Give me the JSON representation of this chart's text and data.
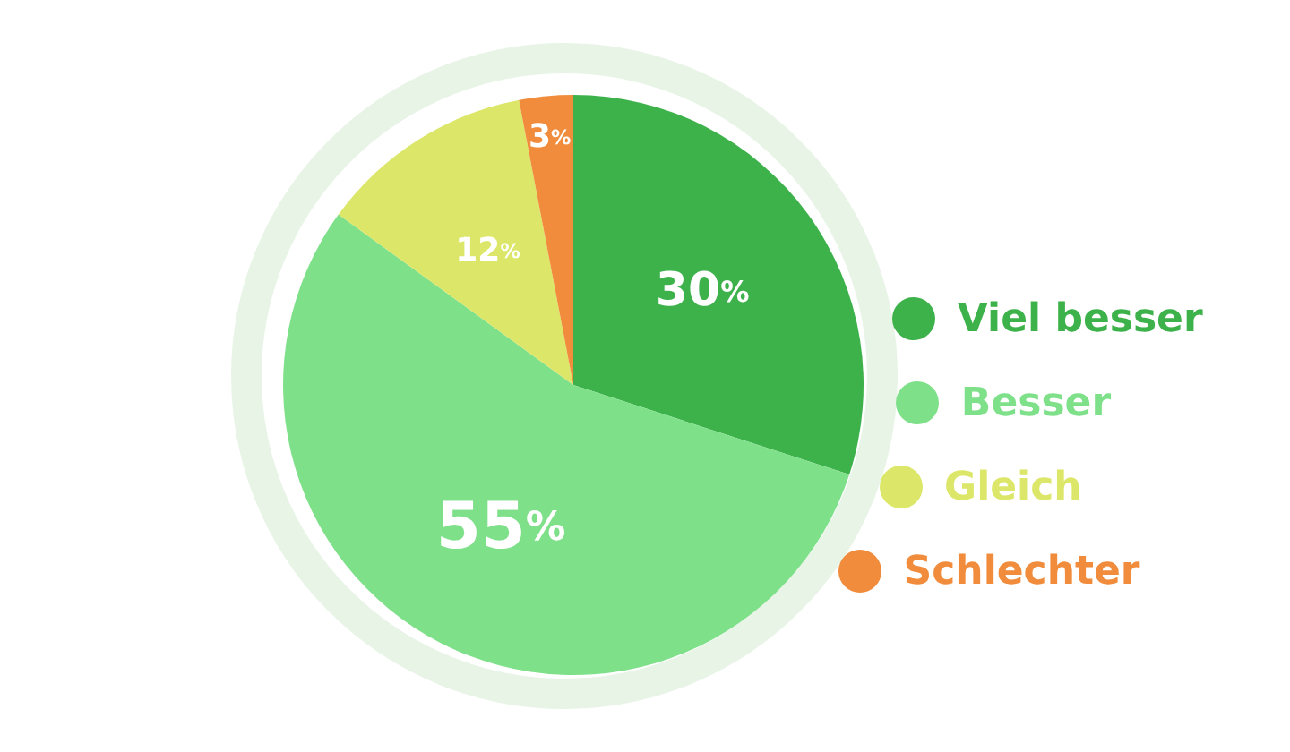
{
  "chart_data": {
    "type": "pie",
    "categories": [
      "Viel besser",
      "Besser",
      "Gleich",
      "Schlechter"
    ],
    "values": [
      30,
      55,
      12,
      3
    ],
    "value_labels": [
      "30%",
      "55%",
      "12%",
      "3%"
    ],
    "colors": [
      "#3db24b",
      "#7fe08a",
      "#dce769",
      "#f08c3b"
    ],
    "legend": "right"
  }
}
